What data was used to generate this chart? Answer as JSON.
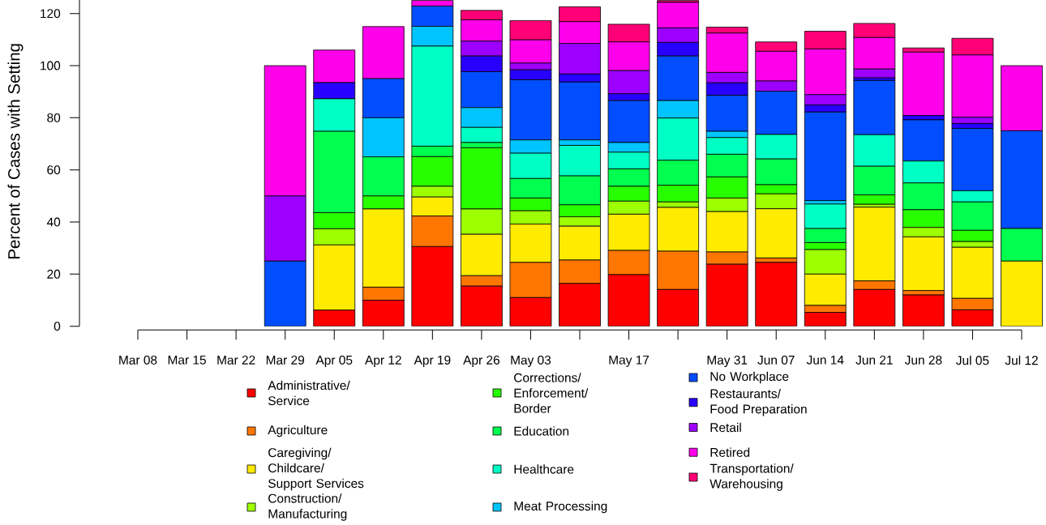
{
  "chart_data": {
    "type": "bar",
    "stacked": true,
    "legend": "bottom",
    "ylabel": "Percent of Cases with Setting",
    "ylim": [
      0,
      125.2
    ],
    "yticks": [
      0,
      20,
      40,
      60,
      80,
      100,
      120
    ],
    "categories": [
      "Mar 08",
      "Mar 15",
      "Mar 22",
      "Mar 29",
      "Apr 05",
      "Apr 12",
      "Apr 19",
      "Apr 26",
      "May 03",
      null,
      "May 17",
      null,
      "May 31",
      "Jun 07",
      "Jun 14",
      "Jun 21",
      "Jun 28",
      "Jul 05",
      "Jul 12"
    ],
    "series": [
      {
        "name": "Administrative/Service",
        "color": "#FF0000",
        "values": [
          0,
          0,
          0,
          0,
          6.2,
          10,
          30.6,
          15.4,
          11.0,
          16.4,
          19.8,
          14.1,
          23.8,
          24.5,
          5.3,
          14.1,
          12.0,
          6.3,
          0
        ]
      },
      {
        "name": "Agriculture",
        "color": "#FF7600",
        "values": [
          0,
          0,
          0,
          0,
          0,
          5,
          11.7,
          4.0,
          13.5,
          9.0,
          9.3,
          14.7,
          4.7,
          1.7,
          2.7,
          3.3,
          1.7,
          4.4,
          0
        ]
      },
      {
        "name": "Caregiving/Childcare/Support Services",
        "color": "#FFEB00",
        "values": [
          0,
          0,
          0,
          0,
          25,
          30,
          7.3,
          15.9,
          14.7,
          13.0,
          13.9,
          16.8,
          15.5,
          18.9,
          12.0,
          28.3,
          20.6,
          19.6,
          25
        ]
      },
      {
        "name": "Construction/Manufacturing",
        "color": "#9DFF00",
        "values": [
          0,
          0,
          0,
          0,
          6.2,
          0,
          4.1,
          9.7,
          5.1,
          3.6,
          5.0,
          2.1,
          5.2,
          5.7,
          9.4,
          1.1,
          3.6,
          2.2,
          0
        ]
      },
      {
        "name": "Corrections/Enforcement/Border",
        "color": "#27FF00",
        "values": [
          0,
          0,
          0,
          0,
          6.2,
          5,
          11.4,
          23.5,
          4.9,
          4.6,
          5.7,
          6.4,
          8.1,
          3.5,
          2.7,
          3.6,
          6.8,
          4.3,
          0
        ]
      },
      {
        "name": "Education",
        "color": "#00FF4E",
        "values": [
          0,
          0,
          0,
          0,
          31.2,
          15,
          4.0,
          2.0,
          7.5,
          11.1,
          6.7,
          9.6,
          8.7,
          9.9,
          5.4,
          11.0,
          10.3,
          10.9,
          12.5
        ]
      },
      {
        "name": "Healthcare",
        "color": "#00FFC4",
        "values": [
          0,
          0,
          0,
          0,
          12.5,
          0,
          38.4,
          5.8,
          9.7,
          11.7,
          6.4,
          16.2,
          6.4,
          9.4,
          9.4,
          12.1,
          8.4,
          4.3,
          0
        ]
      },
      {
        "name": "Meat Processing",
        "color": "#00C4FF",
        "values": [
          0,
          0,
          0,
          0,
          0,
          15,
          7.6,
          7.6,
          5.1,
          2.1,
          3.7,
          6.7,
          2.4,
          0,
          1.3,
          0,
          0,
          0,
          0
        ]
      },
      {
        "name": "No Workplace",
        "color": "#004EFF",
        "values": [
          0,
          0,
          0,
          25,
          0,
          15,
          7.8,
          13.8,
          23.1,
          22.2,
          16.1,
          17.1,
          13.8,
          16.6,
          34.0,
          20.8,
          15.8,
          23.9,
          37.5
        ]
      },
      {
        "name": "Restaurants/Food Preparation",
        "color": "#2700FF",
        "values": [
          0,
          0,
          0,
          0,
          6.2,
          0,
          0,
          6.0,
          3.8,
          3.1,
          2.6,
          5.2,
          4.8,
          0,
          2.7,
          1.0,
          1.7,
          1.9,
          0
        ]
      },
      {
        "name": "Retail",
        "color": "#9D00FF",
        "values": [
          0,
          0,
          0,
          25,
          0,
          0,
          0,
          5.7,
          2.6,
          11.7,
          8.9,
          5.6,
          4.0,
          3.9,
          4.0,
          3.4,
          0,
          2.4,
          0
        ]
      },
      {
        "name": "Retired",
        "color": "#FF00EB",
        "values": [
          0,
          0,
          0,
          50,
          12.5,
          20,
          2.1,
          8.2,
          8.9,
          8.4,
          11.0,
          9.8,
          15.1,
          11.4,
          17.5,
          12.1,
          24.3,
          23.9,
          25
        ]
      },
      {
        "name": "Transportation/Warehousing",
        "color": "#FF0076",
        "values": [
          0,
          0,
          0,
          0,
          0,
          0,
          0,
          3.6,
          7.4,
          5.7,
          6.8,
          0.7,
          2.3,
          3.6,
          6.8,
          5.4,
          1.6,
          6.4,
          0
        ]
      }
    ]
  }
}
